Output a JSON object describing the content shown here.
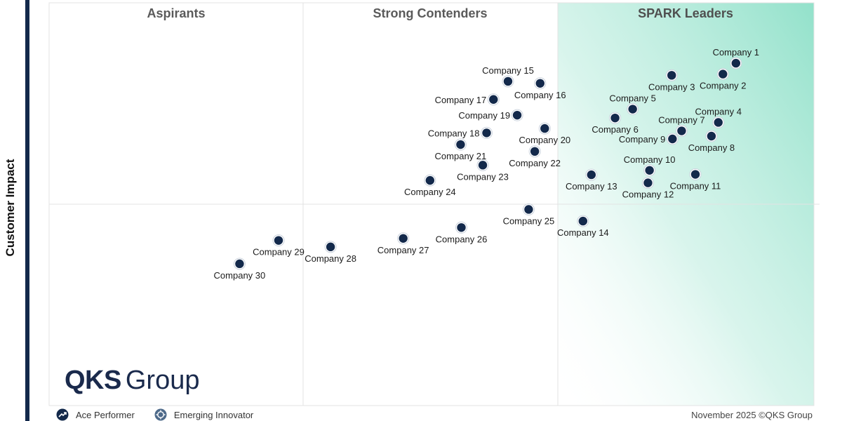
{
  "chart_data": {
    "type": "scatter",
    "title": "",
    "ylabel": "Customer Impact",
    "xlabel": "",
    "xlim": [
      0,
      100
    ],
    "ylim": [
      0,
      100
    ],
    "grid": false,
    "quadrants": [
      "Aspirants",
      "Strong Contenders",
      "SPARK Leaders"
    ],
    "points": [
      {
        "label": "Company 1",
        "x": 89.8,
        "y": 85.0,
        "label_pos": "top"
      },
      {
        "label": "Company 2",
        "x": 88.1,
        "y": 82.3,
        "label_pos": "bottom"
      },
      {
        "label": "Company 3",
        "x": 81.4,
        "y": 82.0,
        "label_pos": "bottom"
      },
      {
        "label": "Company 4",
        "x": 87.5,
        "y": 70.3,
        "label_pos": "top"
      },
      {
        "label": "Company 5",
        "x": 76.3,
        "y": 73.6,
        "label_pos": "top"
      },
      {
        "label": "Company 6",
        "x": 74.0,
        "y": 71.4,
        "label_pos": "bottom"
      },
      {
        "label": "Company 7",
        "x": 82.7,
        "y": 68.2,
        "label_pos": "top"
      },
      {
        "label": "Company 8",
        "x": 86.6,
        "y": 66.9,
        "label_pos": "bottom"
      },
      {
        "label": "Company 9",
        "x": 81.5,
        "y": 66.2,
        "label_pos": "left"
      },
      {
        "label": "Company 10",
        "x": 78.5,
        "y": 58.4,
        "label_pos": "top"
      },
      {
        "label": "Company 11",
        "x": 84.5,
        "y": 57.4,
        "label_pos": "bottom"
      },
      {
        "label": "Company 12",
        "x": 78.3,
        "y": 55.3,
        "label_pos": "bottom"
      },
      {
        "label": "Company 13",
        "x": 70.9,
        "y": 57.3,
        "label_pos": "bottom"
      },
      {
        "label": "Company 14",
        "x": 69.8,
        "y": 45.8,
        "label_pos": "bottom"
      },
      {
        "label": "Company 15",
        "x": 60.0,
        "y": 80.5,
        "label_pos": "top"
      },
      {
        "label": "Company 16",
        "x": 64.2,
        "y": 80.0,
        "label_pos": "bottom"
      },
      {
        "label": "Company 17",
        "x": 58.1,
        "y": 76.0,
        "label_pos": "left"
      },
      {
        "label": "Company 18",
        "x": 57.2,
        "y": 67.7,
        "label_pos": "left"
      },
      {
        "label": "Company 19",
        "x": 61.2,
        "y": 72.1,
        "label_pos": "left"
      },
      {
        "label": "Company 20",
        "x": 64.8,
        "y": 68.8,
        "label_pos": "bottom"
      },
      {
        "label": "Company 21",
        "x": 53.8,
        "y": 64.8,
        "label_pos": "bottom"
      },
      {
        "label": "Company 22",
        "x": 63.5,
        "y": 63.1,
        "label_pos": "bottom"
      },
      {
        "label": "Company 23",
        "x": 56.7,
        "y": 59.7,
        "label_pos": "bottom"
      },
      {
        "label": "Company 24",
        "x": 49.8,
        "y": 55.9,
        "label_pos": "bottom"
      },
      {
        "label": "Company 25",
        "x": 62.7,
        "y": 48.7,
        "label_pos": "bottom"
      },
      {
        "label": "Company 26",
        "x": 53.9,
        "y": 44.2,
        "label_pos": "bottom"
      },
      {
        "label": "Company 27",
        "x": 46.3,
        "y": 41.5,
        "label_pos": "bottom"
      },
      {
        "label": "Company 28",
        "x": 36.8,
        "y": 39.4,
        "label_pos": "bottom"
      },
      {
        "label": "Company 29",
        "x": 30.0,
        "y": 41.0,
        "label_pos": "bottom"
      },
      {
        "label": "Company 30",
        "x": 24.9,
        "y": 35.2,
        "label_pos": "bottom"
      }
    ]
  },
  "branding": {
    "logo_strong": "QKS",
    "logo_light": "Group"
  },
  "legend": {
    "items": [
      {
        "label": "Ace Performer",
        "icon": "ace-performer-icon"
      },
      {
        "label": "Emerging Innovator",
        "icon": "emerging-innovator-icon"
      }
    ]
  },
  "footer": {
    "note": "November  2025 ©QKS Group"
  },
  "colors": {
    "marker": "#13294b",
    "leader_gradient": "#7fdcc1",
    "axis_bar": "#13294b",
    "quadrant_title": "#555555"
  }
}
